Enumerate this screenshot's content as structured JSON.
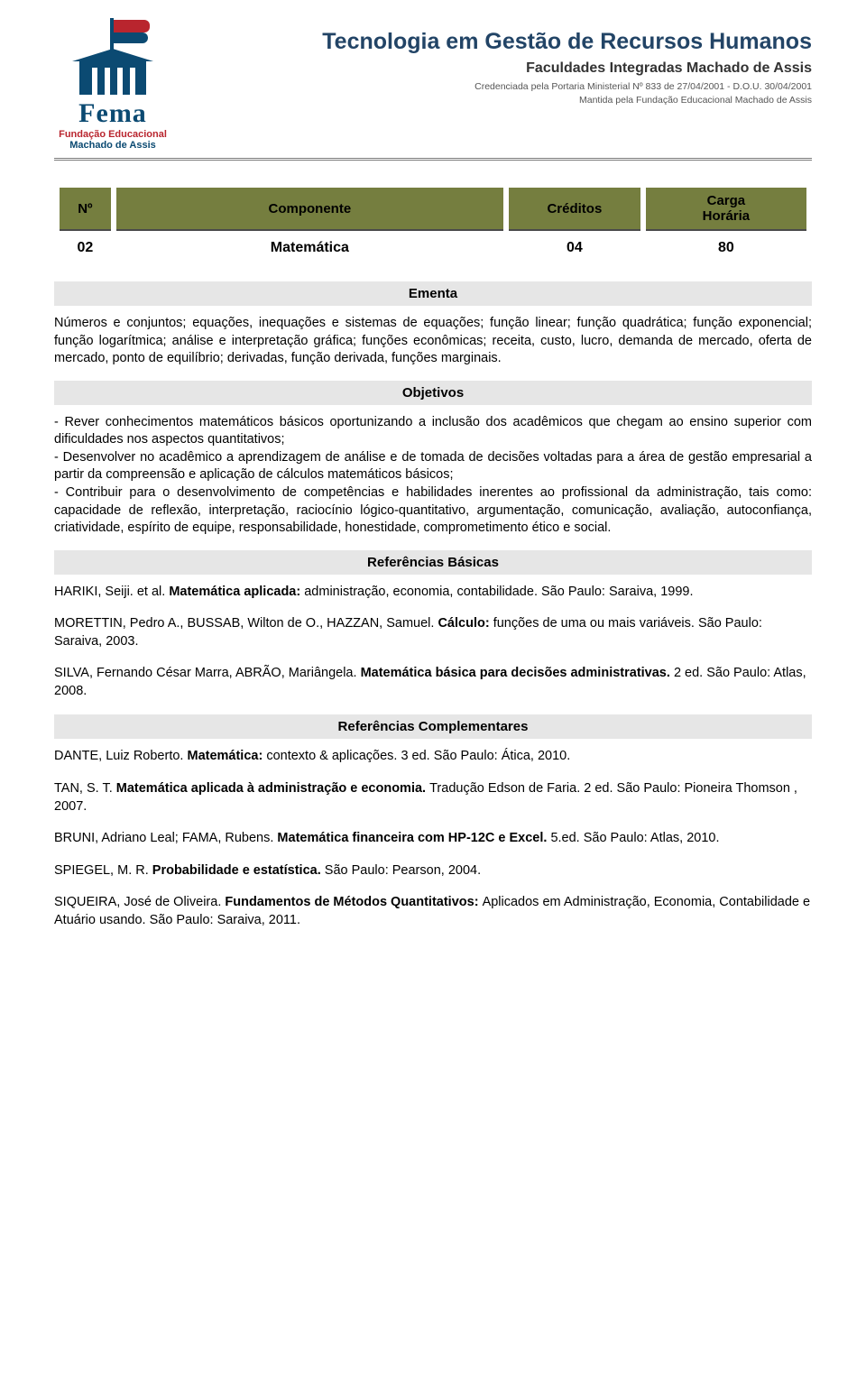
{
  "colors": {
    "olive_header": "#757e3f",
    "band_gray": "#e6e6e6",
    "brand_blue": "#0b4a72",
    "brand_red": "#b9252e",
    "title_blue": "#224466",
    "text": "#000000",
    "header_rule": "#7a7a7a"
  },
  "fonts": {
    "body_family": "Arial, Helvetica, sans-serif",
    "body_size_pt": 11,
    "header_title_size_pt": 19,
    "table_header_size_pt": 11
  },
  "logo": {
    "brand": "Fema",
    "line1": "Fundação Educacional",
    "line2": "Machado de Assis"
  },
  "header": {
    "title": "Tecnologia em Gestão de Recursos Humanos",
    "subtitle": "Faculdades Integradas Machado de Assis",
    "small1": "Credenciada pela Portaria Ministerial Nº 833 de 27/04/2001 - D.O.U. 30/04/2001",
    "small2": "Mantida pela Fundação Educacional Machado de Assis"
  },
  "course_table": {
    "headers": {
      "no": "Nº",
      "comp": "Componente",
      "cred": "Créditos",
      "carga1": "Carga",
      "carga2": "Horária"
    },
    "row": {
      "no": "02",
      "comp": "Matemática",
      "cred": "04",
      "carga": "80"
    }
  },
  "sections": {
    "ementa_label": "Ementa",
    "ementa_text": "Números e conjuntos; equações, inequações e sistemas de equações; função linear; função quadrática; função exponencial; função logarítmica; análise e interpretação gráfica; funções econômicas; receita, custo, lucro, demanda de mercado, oferta de mercado, ponto de equilíbrio; derivadas, função derivada, funções marginais.",
    "objetivos_label": "Objetivos",
    "objetivos_text": "- Rever conhecimentos matemáticos básicos oportunizando a inclusão dos acadêmicos que chegam ao ensino superior com dificuldades nos aspectos quantitativos;\n- Desenvolver no acadêmico a aprendizagem de análise e de tomada de decisões voltadas para a área de gestão empresarial a partir da compreensão e aplicação de cálculos matemáticos básicos;\n- Contribuir para o desenvolvimento de competências e habilidades inerentes ao profissional da administração, tais como: capacidade de reflexão, interpretação, raciocínio lógico-quantitativo, argumentação, comunicação, avaliação, autoconfiança, criatividade, espírito de equipe, responsabilidade, honestidade, comprometimento ético e social.",
    "ref_basic_label": "Referências Básicas",
    "ref_comp_label": "Referências Complementares"
  },
  "refs_basic": [
    {
      "pre": "HARIKI, Seiji. et al. ",
      "bold": "Matemática aplicada: ",
      "post": "administração, economia, contabilidade. São Paulo: Saraiva, 1999."
    },
    {
      "pre": "MORETTIN, Pedro A., BUSSAB, Wilton de O., HAZZAN, Samuel. ",
      "bold": "Cálculo: ",
      "post": "funções de uma ou mais variáveis. São Paulo: Saraiva, 2003."
    },
    {
      "pre": "SILVA, Fernando César Marra, ABRÃO, Mariângela. ",
      "bold": "Matemática básica para decisões administrativas. ",
      "post": "2 ed. São Paulo: Atlas, 2008."
    }
  ],
  "refs_comp": [
    {
      "pre": "DANTE, Luiz Roberto. ",
      "bold": "Matemática: ",
      "post": "contexto & aplicações. 3 ed. São Paulo: Ática, 2010."
    },
    {
      "pre": "TAN, S. T. ",
      "bold": "Matemática aplicada à administração e economia. ",
      "post": "Tradução Edson de Faria. 2 ed. São Paulo: Pioneira Thomson , 2007."
    },
    {
      "pre": "BRUNI, Adriano Leal; FAMA, Rubens. ",
      "bold": "Matemática financeira com HP-12C e Excel. ",
      "post": "5.ed. São Paulo: Atlas, 2010."
    },
    {
      "pre": "SPIEGEL, M. R. ",
      "bold": "Probabilidade e estatística. ",
      "post": "São Paulo: Pearson, 2004."
    },
    {
      "pre": "SIQUEIRA, José de Oliveira. ",
      "bold": "Fundamentos de Métodos Quantitativos: ",
      "post": "Aplicados em Administração, Economia, Contabilidade e Atuário usando. São Paulo: Saraiva, 2011."
    }
  ]
}
